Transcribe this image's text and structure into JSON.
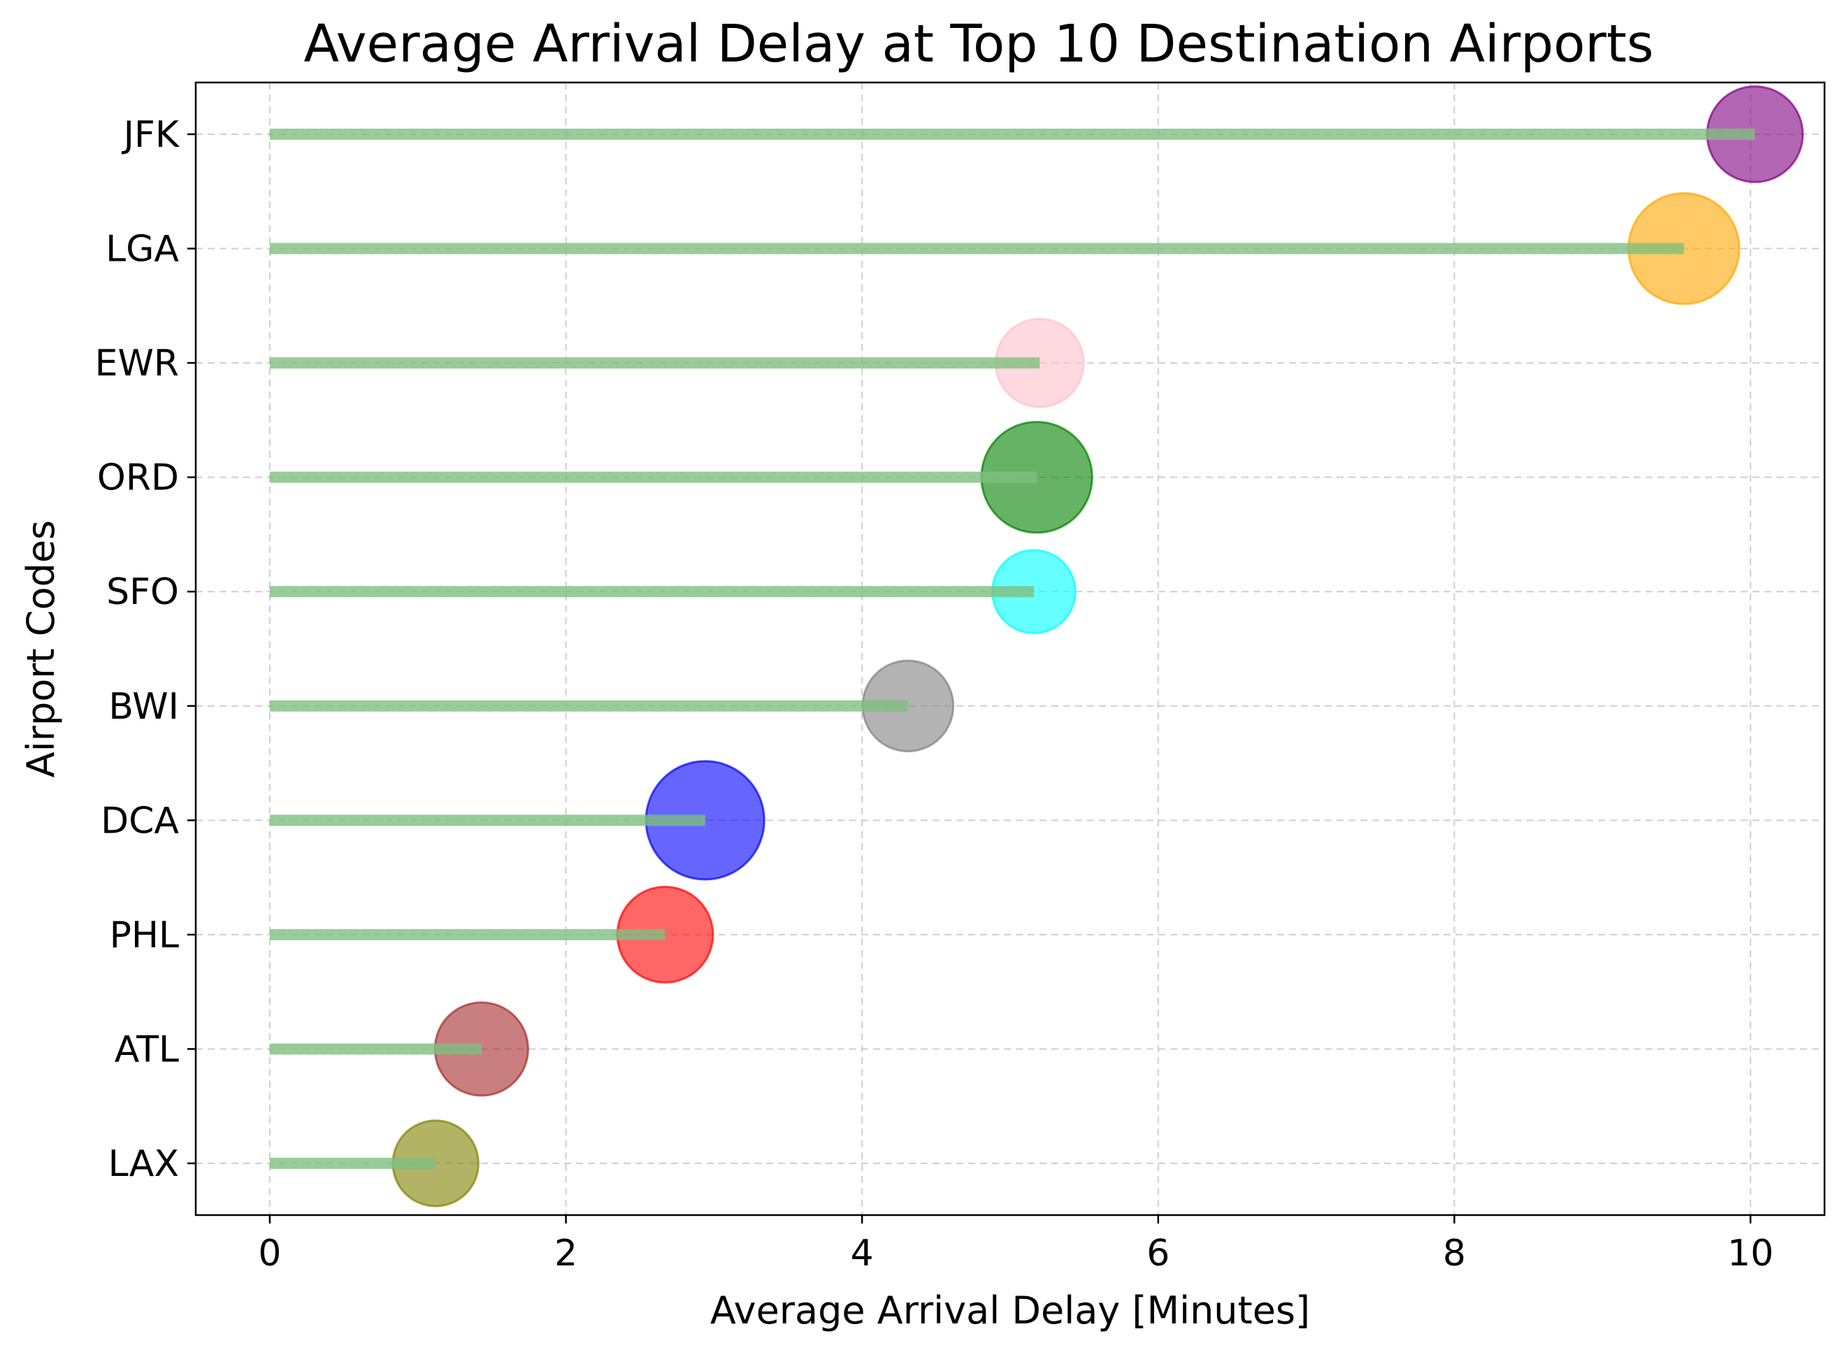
{
  "chart_data": {
    "type": "lollipop",
    "title": "Average Arrival Delay at Top 10 Destination Airports",
    "xlabel": "Average Arrival Delay [Minutes]",
    "ylabel": "Airport Codes",
    "xlim": [
      -0.5,
      10.5
    ],
    "xticks": [
      0,
      2,
      4,
      6,
      8,
      10
    ],
    "grid": true,
    "stem_color": "#7fbf7f",
    "categories": [
      "LAX",
      "ATL",
      "PHL",
      "DCA",
      "BWI",
      "SFO",
      "ORD",
      "EWR",
      "LGA",
      "JFK"
    ],
    "values": [
      1.12,
      1.43,
      2.67,
      2.94,
      4.31,
      5.16,
      5.18,
      5.2,
      9.55,
      10.03
    ],
    "colors": [
      "#808000",
      "#a52a2a",
      "#ff0000",
      "#0000ff",
      "#808080",
      "#00ffff",
      "#008000",
      "#ffc0cb",
      "#ffa500",
      "#800080"
    ],
    "marker_sizes": [
      3.4,
      3.7,
      3.8,
      4.7,
      3.6,
      3.3,
      4.4,
      3.5,
      4.4,
      3.8
    ]
  }
}
